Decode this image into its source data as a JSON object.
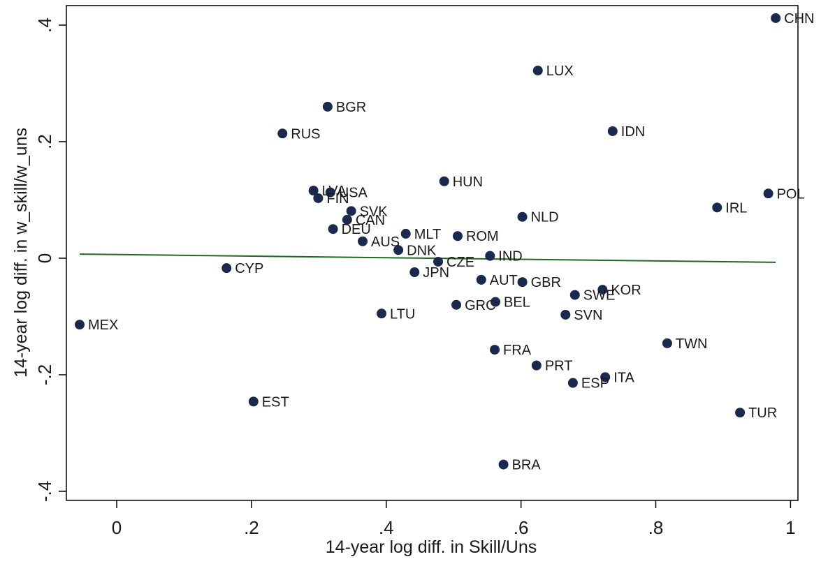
{
  "chart_data": {
    "type": "scatter",
    "xlabel": "14-year log diff. in Skill/Uns",
    "ylabel": "14-year log diff. in w_skill/w_uns",
    "labels": [
      "CHN",
      "LUX",
      "BGR",
      "RUS",
      "IDN",
      "HUN",
      "LVA",
      "USA",
      "FIN",
      "POL",
      "IRL",
      "SVK",
      "CAN",
      "NLD",
      "DEU",
      "MLT",
      "ROM",
      "AUS",
      "DNK",
      "IND",
      "CZE",
      "CYP",
      "JPN",
      "AUT",
      "GBR",
      "KOR",
      "SWE",
      "GRC",
      "BEL",
      "LTU",
      "SVN",
      "MEX",
      "TWN",
      "FRA",
      "PRT",
      "ITA",
      "ESP",
      "EST",
      "TUR",
      "BRA"
    ],
    "x": [
      0.978,
      0.625,
      0.313,
      0.246,
      0.736,
      0.486,
      0.292,
      0.317,
      0.299,
      0.967,
      0.891,
      0.348,
      0.342,
      0.602,
      0.321,
      0.429,
      0.506,
      0.365,
      0.418,
      0.554,
      0.477,
      0.163,
      0.442,
      0.541,
      0.602,
      0.721,
      0.68,
      0.504,
      0.562,
      0.393,
      0.666,
      -0.055,
      0.817,
      0.561,
      0.623,
      0.725,
      0.677,
      0.203,
      0.925,
      0.574
    ],
    "y": [
      0.412,
      0.322,
      0.26,
      0.214,
      0.218,
      0.132,
      0.116,
      0.113,
      0.103,
      0.111,
      0.087,
      0.081,
      0.066,
      0.071,
      0.05,
      0.042,
      0.038,
      0.029,
      0.014,
      0.004,
      -0.006,
      -0.017,
      -0.024,
      -0.037,
      -0.041,
      -0.054,
      -0.063,
      -0.08,
      -0.075,
      -0.095,
      -0.097,
      -0.114,
      -0.146,
      -0.157,
      -0.184,
      -0.204,
      -0.214,
      -0.246,
      -0.265,
      -0.354
    ],
    "color": "#1a2a4f",
    "fit": {
      "x": [
        -0.055,
        0.978
      ],
      "y": [
        0.007,
        -0.007
      ],
      "color": "#1e6b1e"
    },
    "xlim": [
      -0.0747,
      1.011
    ],
    "ylim": [
      -0.4156,
      0.4335
    ],
    "xticks": [
      0,
      {
        "value": 0.2,
        "label": ".2"
      },
      {
        "value": 0.4,
        "label": ".4"
      },
      {
        "value": 0.6,
        "label": ".6"
      },
      {
        "value": 0.8,
        "label": ".8"
      },
      1
    ],
    "yticks": [
      {
        "value": -0.4,
        "label": "-.4"
      },
      {
        "value": -0.2,
        "label": "-.2"
      },
      0,
      {
        "value": 0.2,
        "label": ".2"
      },
      {
        "value": 0.4,
        "label": ".4"
      }
    ]
  }
}
